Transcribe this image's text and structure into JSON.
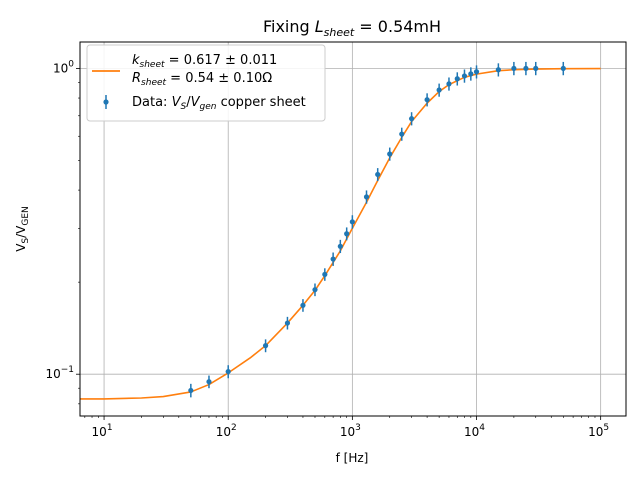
{
  "chart_data": {
    "type": "scatter",
    "title": "Fixing L_sheet = 0.54mH",
    "title_parts": {
      "prefix": "Fixing ",
      "var": "L",
      "sub": "sheet",
      "rest": " = 0.54mH"
    },
    "xlabel": "f [Hz]",
    "ylabel": "V_S/V_GEN",
    "ylabel_parts": {
      "a": "V",
      "a_sub": "S",
      "slash": "/",
      "b": "V",
      "b_sub": "GEN"
    },
    "xscale": "log",
    "yscale": "log",
    "xlim": [
      6.4,
      160000
    ],
    "ylim": [
      0.073,
      1.22
    ],
    "grid": true,
    "x_major_ticks": [
      10,
      100,
      1000,
      10000,
      100000
    ],
    "x_tick_labels": [
      {
        "base": "10",
        "exp": "1"
      },
      {
        "base": "10",
        "exp": "2"
      },
      {
        "base": "10",
        "exp": "3"
      },
      {
        "base": "10",
        "exp": "4"
      },
      {
        "base": "10",
        "exp": "5"
      }
    ],
    "y_major_ticks": [
      0.1,
      1.0
    ],
    "y_tick_labels": [
      {
        "base": "10",
        "exp": "−1"
      },
      {
        "base": "10",
        "exp": "0"
      }
    ],
    "legend_position": "upper-left",
    "legend": {
      "fit_line1": {
        "var": "k",
        "sub": "sheet",
        "rest": " = 0.617 ± 0.011"
      },
      "fit_line2": {
        "var": "R",
        "sub": "sheet",
        "rest": " = 0.54 ± 0.10Ω"
      },
      "data_label": {
        "prefix": "Data: ",
        "a": "V",
        "a_sub": "S",
        "slash": "/",
        "b": "V",
        "b_sub": "gen",
        "rest": " copper sheet"
      }
    },
    "colors": {
      "fit": "#ff7f0e",
      "data": "#1f77b4",
      "grid": "#b0b0b0"
    },
    "series": [
      {
        "kind": "fit-line",
        "x": [
          6.4,
          10,
          20,
          30,
          50,
          70,
          100,
          150,
          200,
          300,
          400,
          500,
          600,
          700,
          800,
          900,
          1000,
          1300,
          1600,
          2000,
          2500,
          3000,
          4000,
          5000,
          6000,
          8000,
          10000,
          15000,
          20000,
          30000,
          50000,
          100000
        ],
        "y": [
          0.083,
          0.083,
          0.0836,
          0.0845,
          0.0875,
          0.0925,
          0.101,
          0.113,
          0.124,
          0.147,
          0.168,
          0.188,
          0.21,
          0.232,
          0.253,
          0.277,
          0.3,
          0.365,
          0.43,
          0.51,
          0.595,
          0.67,
          0.77,
          0.84,
          0.885,
          0.935,
          0.958,
          0.983,
          0.99,
          0.995,
          0.998,
          0.999
        ]
      },
      {
        "kind": "data-points",
        "points": [
          {
            "x": 50,
            "y": 0.0885,
            "err": 0.0045
          },
          {
            "x": 70,
            "y": 0.0945,
            "err": 0.0045
          },
          {
            "x": 100,
            "y": 0.102,
            "err": 0.005
          },
          {
            "x": 200,
            "y": 0.124,
            "err": 0.006
          },
          {
            "x": 300,
            "y": 0.147,
            "err": 0.007
          },
          {
            "x": 400,
            "y": 0.168,
            "err": 0.008
          },
          {
            "x": 500,
            "y": 0.189,
            "err": 0.009
          },
          {
            "x": 600,
            "y": 0.212,
            "err": 0.01
          },
          {
            "x": 700,
            "y": 0.238,
            "err": 0.012
          },
          {
            "x": 800,
            "y": 0.262,
            "err": 0.013
          },
          {
            "x": 900,
            "y": 0.288,
            "err": 0.014
          },
          {
            "x": 1000,
            "y": 0.315,
            "err": 0.016
          },
          {
            "x": 1300,
            "y": 0.38,
            "err": 0.019
          },
          {
            "x": 1600,
            "y": 0.45,
            "err": 0.022
          },
          {
            "x": 2000,
            "y": 0.525,
            "err": 0.026
          },
          {
            "x": 2500,
            "y": 0.61,
            "err": 0.03
          },
          {
            "x": 3000,
            "y": 0.685,
            "err": 0.034
          },
          {
            "x": 4000,
            "y": 0.79,
            "err": 0.039
          },
          {
            "x": 5000,
            "y": 0.85,
            "err": 0.042
          },
          {
            "x": 6000,
            "y": 0.89,
            "err": 0.044
          },
          {
            "x": 7000,
            "y": 0.925,
            "err": 0.046
          },
          {
            "x": 8000,
            "y": 0.945,
            "err": 0.047
          },
          {
            "x": 9000,
            "y": 0.96,
            "err": 0.048
          },
          {
            "x": 10000,
            "y": 0.975,
            "err": 0.048
          },
          {
            "x": 15000,
            "y": 0.99,
            "err": 0.049
          },
          {
            "x": 20000,
            "y": 1.0,
            "err": 0.05
          },
          {
            "x": 25000,
            "y": 1.0,
            "err": 0.05
          },
          {
            "x": 30000,
            "y": 1.0,
            "err": 0.05
          },
          {
            "x": 50000,
            "y": 1.0,
            "err": 0.05
          }
        ]
      }
    ]
  }
}
